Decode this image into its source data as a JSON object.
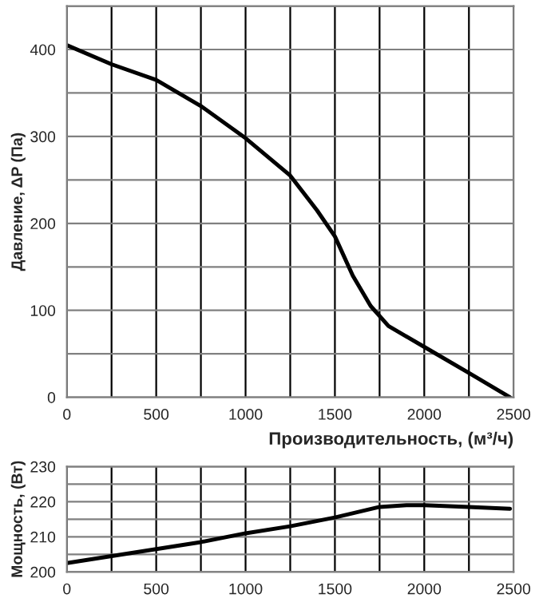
{
  "chart_data": [
    {
      "type": "line",
      "xlabel": "Производительность, (м³/ч)",
      "ylabel": "Давление, ΔP (Па)",
      "xlim": [
        0,
        2500
      ],
      "ylim": [
        0,
        450
      ],
      "xticks": [
        0,
        500,
        1000,
        1500,
        2000,
        2500
      ],
      "yticks": [
        0,
        100,
        200,
        300,
        400
      ],
      "grid": true,
      "marker": "none",
      "line_style": "solid",
      "series": [
        {
          "color": "#000000",
          "x": [
            0,
            250,
            500,
            750,
            1000,
            1250,
            1400,
            1500,
            1600,
            1700,
            1800,
            2000,
            2250,
            2480
          ],
          "values": [
            405,
            383,
            365,
            335,
            298,
            255,
            215,
            185,
            140,
            105,
            82,
            58,
            28,
            0
          ]
        }
      ]
    },
    {
      "type": "line",
      "ylabel": "Мощность, (Вт)",
      "xlim": [
        0,
        2500
      ],
      "ylim": [
        200,
        230
      ],
      "xticks": [
        0,
        500,
        1000,
        1500,
        2000,
        2500
      ],
      "yticks": [
        200,
        210,
        220,
        230
      ],
      "grid": true,
      "marker": "none",
      "line_style": "solid",
      "series": [
        {
          "color": "#000000",
          "x": [
            0,
            250,
            500,
            750,
            1000,
            1250,
            1500,
            1750,
            1900,
            2000,
            2250,
            2480
          ],
          "values": [
            202.5,
            204.5,
            206.5,
            208.5,
            211,
            213,
            215.5,
            218.5,
            219,
            219,
            218.5,
            218
          ]
        }
      ]
    }
  ]
}
